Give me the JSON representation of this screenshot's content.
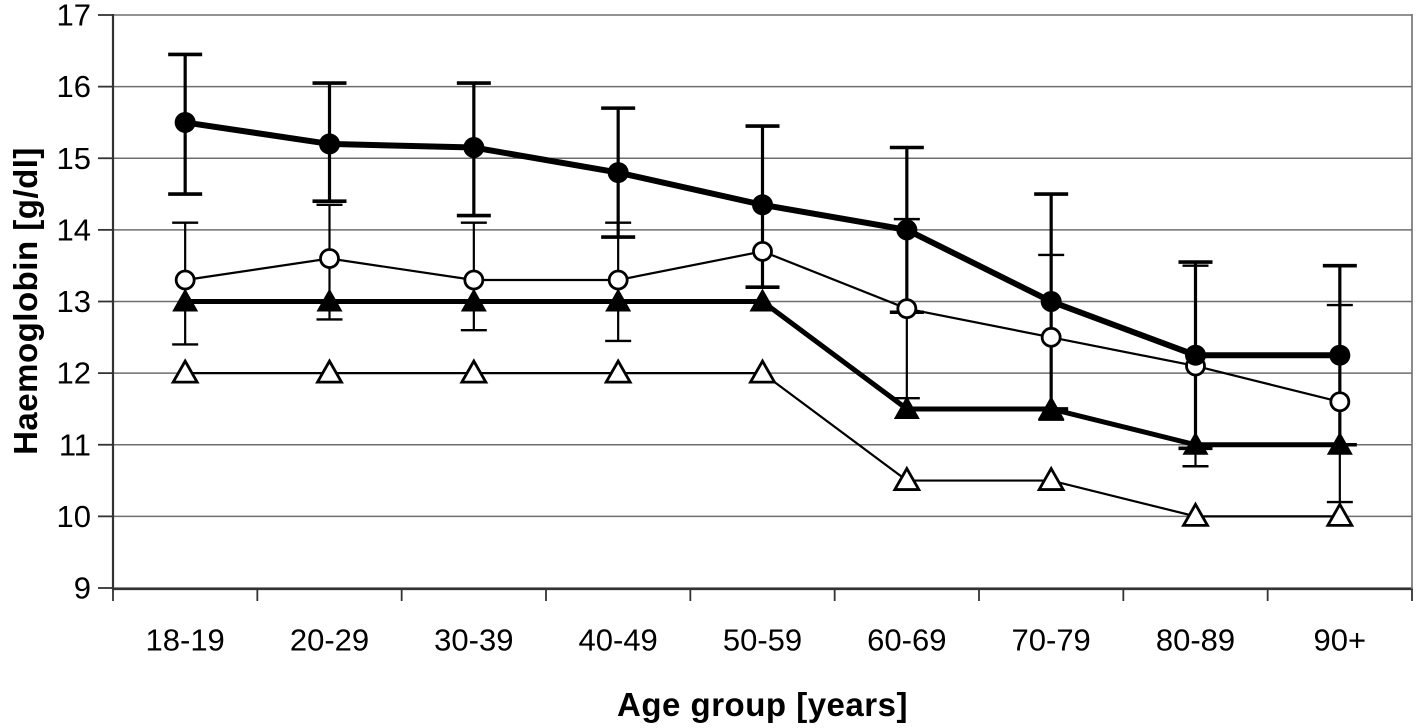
{
  "chart_data": {
    "type": "line",
    "title": "",
    "xlabel": "Age group [years]",
    "ylabel": "Haemoglobin [g/dl]",
    "categories": [
      "18-19",
      "20-29",
      "30-39",
      "40-49",
      "50-59",
      "60-69",
      "70-79",
      "80-89",
      "90+"
    ],
    "ylim": [
      9,
      17
    ],
    "ytick_interval": 1,
    "yticks": [
      17,
      16,
      15,
      14,
      13,
      12,
      11,
      10,
      9
    ],
    "grid": "horizontal",
    "legend": "none",
    "series": [
      {
        "name": "filled-circle-series",
        "marker": "filled-circle",
        "line": "thick",
        "values": [
          15.5,
          15.2,
          15.15,
          14.8,
          14.35,
          14.0,
          13.0,
          12.25,
          12.25
        ],
        "err_low": [
          14.5,
          14.4,
          14.2,
          13.9,
          13.2,
          12.85,
          11.5,
          10.95,
          11.0
        ],
        "err_high": [
          16.45,
          16.05,
          16.05,
          15.7,
          15.45,
          15.15,
          14.5,
          13.55,
          13.5
        ]
      },
      {
        "name": "open-circle-series",
        "marker": "open-circle",
        "line": "thin",
        "values": [
          13.3,
          13.6,
          13.3,
          13.3,
          13.7,
          12.9,
          12.5,
          12.1,
          11.6
        ],
        "err_low": [
          12.4,
          12.75,
          12.6,
          12.45,
          null,
          11.65,
          11.35,
          10.7,
          10.2
        ],
        "err_high": [
          14.1,
          14.35,
          14.1,
          14.1,
          null,
          14.15,
          13.65,
          13.5,
          12.95
        ]
      },
      {
        "name": "filled-triangle-series",
        "marker": "filled-triangle",
        "line": "thick",
        "values": [
          13,
          13,
          13,
          13,
          13,
          11.5,
          11.5,
          11,
          11
        ],
        "err_low": null,
        "err_high": null
      },
      {
        "name": "open-triangle-series",
        "marker": "open-triangle",
        "line": "thin",
        "values": [
          12,
          12,
          12,
          12,
          12,
          10.5,
          10.5,
          10,
          10
        ],
        "err_low": null,
        "err_high": null
      }
    ],
    "colors": {
      "foreground": "#000000",
      "gridline": "#6e6e6e",
      "axis": "#333333",
      "background": "#ffffff"
    }
  }
}
